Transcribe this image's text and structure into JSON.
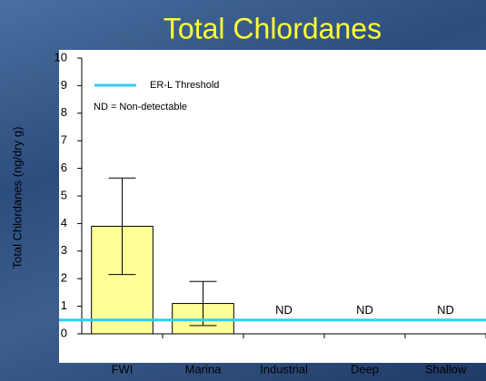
{
  "chart_data": {
    "type": "bar",
    "title": "Total Chlordanes",
    "y_label": "Total Chlordanes (ng/dry g)",
    "categories": [
      "FWI",
      "Marina",
      "Industrial",
      "Deep",
      "Shallow"
    ],
    "values": [
      3.9,
      1.1,
      null,
      null,
      null
    ],
    "errors": [
      1.75,
      0.8,
      null,
      null,
      null
    ],
    "value_labels": [
      null,
      null,
      "ND",
      "ND",
      "ND"
    ],
    "color": "#ffff99",
    "threshold": {
      "name": "ER-L Threshold",
      "value": 0.5,
      "color": "#33ccee"
    },
    "annotation": "ND = Non-detectable",
    "ylim": [
      0,
      10
    ],
    "yticks": [
      0,
      1,
      2,
      3,
      4,
      5,
      6,
      7,
      8,
      9,
      10
    ]
  }
}
